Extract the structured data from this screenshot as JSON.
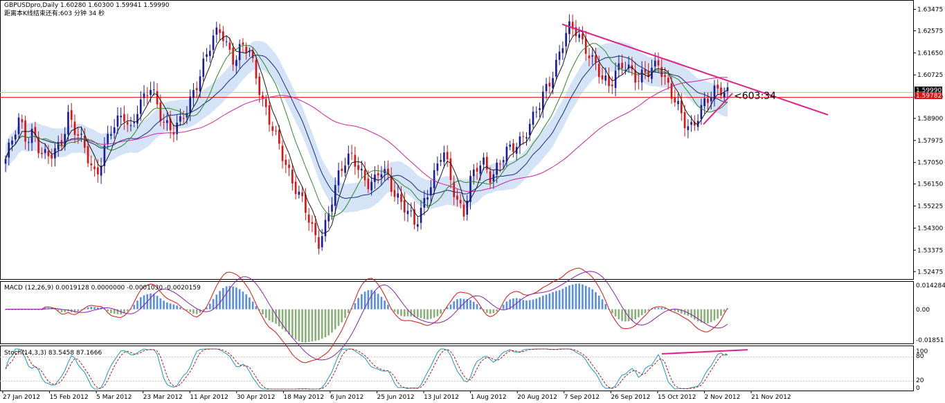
{
  "header": {
    "symbol_line": "GBPUSDpro,Daily  1.60280 1.60300 1.59941 1.59990",
    "countdown_line": "距离本K线结束还有:603 分钟 34 秒"
  },
  "annotations": {
    "countdown_marker": "<603:34"
  },
  "price_tags": {
    "current": "1.59990",
    "level": "1.59782"
  },
  "macd_panel": {
    "label": "MACD (12,26,9) 0.0019128 0.0000000 -0.0001030 -0.0020159",
    "y_ticks": [
      "0.014284",
      "0.00",
      "-0.01851"
    ]
  },
  "stoch_panel": {
    "label": "Stoch(14,3,3) 83.5458 87.1666",
    "y_ticks": [
      "100",
      "80",
      "20",
      "0"
    ]
  },
  "colors": {
    "bull_candle": "#1a1aa0",
    "bear_candle": "#e01010",
    "ma_fast": "#1a1a1a",
    "ma_mid": "#2a8a2a",
    "ma_slow_magenta": "#d020a0",
    "ma_navy": "#1a2a7a",
    "band": "#c9dcf2",
    "trendline": "#e0208a",
    "horizontal_level": "#e01010",
    "macd_hist_pos": "#5a8ee0",
    "macd_hist_neg": "#8ab07a",
    "macd_line": "#e01010",
    "macd_signal": "#8a20b0",
    "stoch_main": "#1a9ac0",
    "stoch_signal": "#c01010"
  },
  "chart_data": [
    {
      "type": "candlestick",
      "title": "GBPUSDpro,Daily",
      "ylim": [
        1.5225,
        1.6375
      ],
      "y_ticks": [
        "1.63475",
        "1.62575",
        "1.61650",
        "1.60725",
        "1.59800",
        "1.58900",
        "1.57975",
        "1.57050",
        "1.56150",
        "1.55225",
        "1.54300",
        "1.53375",
        "1.52475"
      ],
      "x_ticks": [
        "27 Jan 2012",
        "15 Feb 2012",
        "5 Mar 2012",
        "23 Mar 2012",
        "11 Apr 2012",
        "30 Apr 2012",
        "18 May 2012",
        "6 Jun 2012",
        "25 Jun 2012",
        "13 Jul 2012",
        "1 Aug 2012",
        "20 Aug 2012",
        "7 Sep 2012",
        "26 Sep 2012",
        "15 Oct 2012",
        "2 Nov 2012",
        "21 Nov 2012"
      ],
      "horizontal_level": 1.59782,
      "last_price": 1.5999,
      "ohlc_last": {
        "open": 1.6028,
        "high": 1.603,
        "low": 1.59941,
        "close": 1.5999
      },
      "close_path": [
        [
          0,
          1.572
        ],
        [
          6,
          1.579
        ],
        [
          12,
          1.588
        ],
        [
          18,
          1.581
        ],
        [
          24,
          1.585
        ],
        [
          30,
          1.574
        ],
        [
          36,
          1.571
        ],
        [
          42,
          1.575
        ],
        [
          48,
          1.58
        ],
        [
          54,
          1.591
        ],
        [
          60,
          1.583
        ],
        [
          66,
          1.578
        ],
        [
          72,
          1.572
        ],
        [
          78,
          1.566
        ],
        [
          84,
          1.574
        ],
        [
          90,
          1.582
        ],
        [
          96,
          1.586
        ],
        [
          102,
          1.592
        ],
        [
          108,
          1.585
        ],
        [
          114,
          1.593
        ],
        [
          120,
          1.596
        ],
        [
          126,
          1.602
        ],
        [
          132,
          1.594
        ],
        [
          138,
          1.588
        ],
        [
          144,
          1.583
        ],
        [
          150,
          1.585
        ],
        [
          156,
          1.592
        ],
        [
          162,
          1.601
        ],
        [
          168,
          1.608
        ],
        [
          174,
          1.615
        ],
        [
          180,
          1.622
        ],
        [
          186,
          1.627
        ],
        [
          192,
          1.62
        ],
        [
          198,
          1.613
        ],
        [
          204,
          1.618
        ],
        [
          210,
          1.617
        ],
        [
          216,
          1.609
        ],
        [
          222,
          1.598
        ],
        [
          228,
          1.588
        ],
        [
          234,
          1.579
        ],
        [
          240,
          1.572
        ],
        [
          246,
          1.566
        ],
        [
          252,
          1.56
        ],
        [
          258,
          1.552
        ],
        [
          264,
          1.542
        ],
        [
          270,
          1.536
        ],
        [
          276,
          1.545
        ],
        [
          282,
          1.556
        ],
        [
          288,
          1.564
        ],
        [
          294,
          1.57
        ],
        [
          300,
          1.574
        ],
        [
          306,
          1.569
        ],
        [
          312,
          1.562
        ],
        [
          318,
          1.56
        ],
        [
          324,
          1.567
        ],
        [
          330,
          1.566
        ],
        [
          336,
          1.559
        ],
        [
          342,
          1.553
        ],
        [
          348,
          1.548
        ],
        [
          354,
          1.544
        ],
        [
          360,
          1.553
        ],
        [
          366,
          1.561
        ],
        [
          372,
          1.566
        ],
        [
          378,
          1.575
        ],
        [
          384,
          1.565
        ],
        [
          390,
          1.556
        ],
        [
          396,
          1.55
        ],
        [
          402,
          1.562
        ],
        [
          408,
          1.568
        ],
        [
          414,
          1.571
        ],
        [
          420,
          1.565
        ],
        [
          426,
          1.57
        ],
        [
          432,
          1.573
        ],
        [
          438,
          1.576
        ],
        [
          444,
          1.58
        ],
        [
          450,
          1.585
        ],
        [
          456,
          1.589
        ],
        [
          462,
          1.594
        ],
        [
          468,
          1.602
        ],
        [
          474,
          1.61
        ],
        [
          480,
          1.62
        ],
        [
          486,
          1.626
        ],
        [
          492,
          1.625
        ],
        [
          498,
          1.621
        ],
        [
          504,
          1.618
        ],
        [
          510,
          1.612
        ],
        [
          516,
          1.604
        ],
        [
          522,
          1.601
        ],
        [
          528,
          1.61
        ],
        [
          534,
          1.614
        ],
        [
          540,
          1.609
        ],
        [
          546,
          1.603
        ],
        [
          552,
          1.607
        ],
        [
          558,
          1.611
        ],
        [
          564,
          1.614
        ],
        [
          570,
          1.604
        ],
        [
          576,
          1.597
        ],
        [
          582,
          1.593
        ],
        [
          588,
          1.588
        ],
        [
          594,
          1.586
        ],
        [
          600,
          1.591
        ],
        [
          606,
          1.595
        ],
        [
          612,
          1.601
        ],
        [
          618,
          1.603
        ],
        [
          624,
          1.6
        ]
      ],
      "series": [
        {
          "name": "",
          "values": "ma_fast"
        },
        {
          "name": "",
          "values": "ma_mid"
        },
        {
          "name": "",
          "values": "ma_slow"
        }
      ]
    },
    {
      "type": "line",
      "title": "MACD (12,26,9)",
      "ylim": [
        -0.0185,
        0.0143
      ],
      "values": {
        "macd": 0.0019128,
        "signal": 0.0,
        "hist": -0.000103,
        "other": -0.0020159
      }
    },
    {
      "type": "line",
      "title": "Stoch(14,3,3)",
      "ylim": [
        0,
        100
      ],
      "levels": [
        80,
        20
      ],
      "values": {
        "main": 83.5458,
        "signal": 87.1666
      }
    }
  ]
}
